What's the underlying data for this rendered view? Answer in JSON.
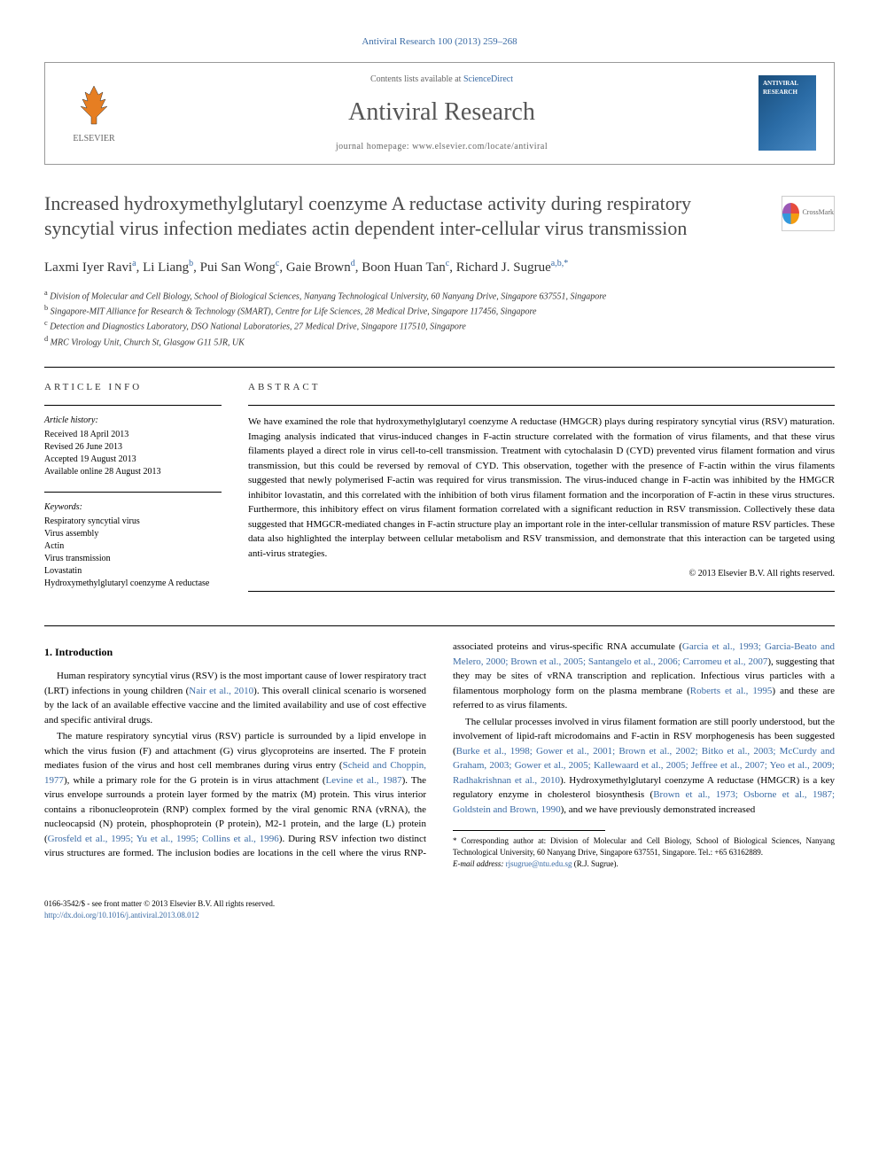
{
  "journal_ref": "Antiviral Research 100 (2013) 259–268",
  "header": {
    "elsevier": "ELSEVIER",
    "contents_prefix": "Contents lists available at ",
    "contents_link": "ScienceDirect",
    "journal_name": "Antiviral Research",
    "homepage_label": "journal homepage: ",
    "homepage_url": "www.elsevier.com/locate/antiviral",
    "cover_label": "ANTIVIRAL RESEARCH"
  },
  "crossmark": "CrossMark",
  "title": "Increased hydroxymethylglutaryl coenzyme A reductase activity during respiratory syncytial virus infection mediates actin dependent inter-cellular virus transmission",
  "authors_html": "Laxmi Iyer Ravi<sup>a</sup>, Li Liang<sup>b</sup>, Pui San Wong<sup>c</sup>, Gaie Brown<sup>d</sup>, Boon Huan Tan<sup>c</sup>, Richard J. Sugrue<sup>a,b,*</sup>",
  "affiliations": [
    {
      "sup": "a",
      "text": "Division of Molecular and Cell Biology, School of Biological Sciences, Nanyang Technological University, 60 Nanyang Drive, Singapore 637551, Singapore"
    },
    {
      "sup": "b",
      "text": "Singapore-MIT Alliance for Research & Technology (SMART), Centre for Life Sciences, 28 Medical Drive, Singapore 117456, Singapore"
    },
    {
      "sup": "c",
      "text": "Detection and Diagnostics Laboratory, DSO National Laboratories, 27 Medical Drive, Singapore 117510, Singapore"
    },
    {
      "sup": "d",
      "text": "MRC Virology Unit, Church St, Glasgow G11 5JR, UK"
    }
  ],
  "info": {
    "heading": "ARTICLE INFO",
    "history_label": "Article history:",
    "history": [
      "Received 18 April 2013",
      "Revised 26 June 2013",
      "Accepted 19 August 2013",
      "Available online 28 August 2013"
    ],
    "keywords_label": "Keywords:",
    "keywords": [
      "Respiratory syncytial virus",
      "Virus assembly",
      "Actin",
      "Virus transmission",
      "Lovastatin",
      "Hydroxymethylglutaryl coenzyme A reductase"
    ]
  },
  "abstract": {
    "heading": "ABSTRACT",
    "text": "We have examined the role that hydroxymethylglutaryl coenzyme A reductase (HMGCR) plays during respiratory syncytial virus (RSV) maturation. Imaging analysis indicated that virus-induced changes in F-actin structure correlated with the formation of virus filaments, and that these virus filaments played a direct role in virus cell-to-cell transmission. Treatment with cytochalasin D (CYD) prevented virus filament formation and virus transmission, but this could be reversed by removal of CYD. This observation, together with the presence of F-actin within the virus filaments suggested that newly polymerised F-actin was required for virus transmission. The virus-induced change in F-actin was inhibited by the HMGCR inhibitor lovastatin, and this correlated with the inhibition of both virus filament formation and the incorporation of F-actin in these virus structures. Furthermore, this inhibitory effect on virus filament formation correlated with a significant reduction in RSV transmission. Collectively these data suggested that HMGCR-mediated changes in F-actin structure play an important role in the inter-cellular transmission of mature RSV particles. These data also highlighted the interplay between cellular metabolism and RSV transmission, and demonstrate that this interaction can be targeted using anti-virus strategies.",
    "copyright": "© 2013 Elsevier B.V. All rights reserved."
  },
  "intro": {
    "heading": "1. Introduction",
    "p1_pre": "Human respiratory syncytial virus (RSV) is the most important cause of lower respiratory tract (LRT) infections in young children (",
    "p1_ref1": "Nair et al., 2010",
    "p1_post": "). This overall clinical scenario is worsened by the lack of an available effective vaccine and the limited availability and use of cost effective and specific antiviral drugs.",
    "p2_pre": "The mature respiratory syncytial virus (RSV) particle is surrounded by a lipid envelope in which the virus fusion (F) and attachment (G) virus glycoproteins are inserted. The F protein mediates fusion of the virus and host cell membranes during virus entry (",
    "p2_ref1": "Scheid and Choppin, 1977",
    "p2_mid1": "), while a primary role for the G protein is in virus attachment (",
    "p2_ref2": "Levine et al., 1987",
    "p2_mid2": "). The virus envelope surrounds a protein layer formed by the matrix (M) protein. This virus interior contains a ribonucleoprotein (RNP) complex formed by the viral genomic RNA (vRNA), the nucleocapsid (N) protein, phosphoprotein (P protein), M2-1 protein, and the large (L) protein (",
    "p2_ref3": "Grosfeld et al., 1995; Yu et al., 1995; Collins et al., 1996",
    "p2_mid3": "). During RSV infection two distinct virus structures are formed. The inclusion bodies are locations in the cell where the virus RNP-associated proteins and virus-specific RNA accumulate (",
    "p2_ref4": "Garcia et al., 1993; Garcia-Beato and Melero, 2000; Brown et al., 2005; Santangelo et al., 2006; Carromeu et al., 2007",
    "p2_mid4": "), suggesting that they may be sites of vRNA transcription and replication. Infectious virus particles with a filamentous morphology form on the plasma membrane (",
    "p2_ref5": "Roberts et al., 1995",
    "p2_post": ") and these are referred to as virus filaments.",
    "p3_pre": "The cellular processes involved in virus filament formation are still poorly understood, but the involvement of lipid-raft microdomains and F-actin in RSV morphogenesis has been suggested (",
    "p3_ref1": "Burke et al., 1998; Gower et al., 2001; Brown et al., 2002; Bitko et al., 2003; McCurdy and Graham, 2003; Gower et al., 2005; Kallewaard et al., 2005; Jeffree et al., 2007; Yeo et al., 2009; Radhakrishnan et al., 2010",
    "p3_mid1": "). Hydroxymethylglutaryl coenzyme A reductase (HMGCR) is a key regulatory enzyme in cholesterol biosynthesis (",
    "p3_ref2": "Brown et al., 1973; Osborne et al., 1987; Goldstein and Brown, 1990",
    "p3_post": "), and we have previously demonstrated increased"
  },
  "footnote": {
    "corr": "* Corresponding author at: Division of Molecular and Cell Biology, School of Biological Sciences, Nanyang Technological University, 60 Nanyang Drive, Singapore 637551, Singapore. Tel.: +65 63162889.",
    "email_label": "E-mail address: ",
    "email": "rjsugrue@ntu.edu.sg",
    "email_post": " (R.J. Sugrue)."
  },
  "footer": {
    "line1": "0166-3542/$ - see front matter © 2013 Elsevier B.V. All rights reserved.",
    "doi_label": "http://dx.doi.org/",
    "doi": "10.1016/j.antiviral.2013.08.012"
  },
  "colors": {
    "link": "#3a6ba5",
    "text": "#000000",
    "heading_gray": "#4a4a4a"
  }
}
